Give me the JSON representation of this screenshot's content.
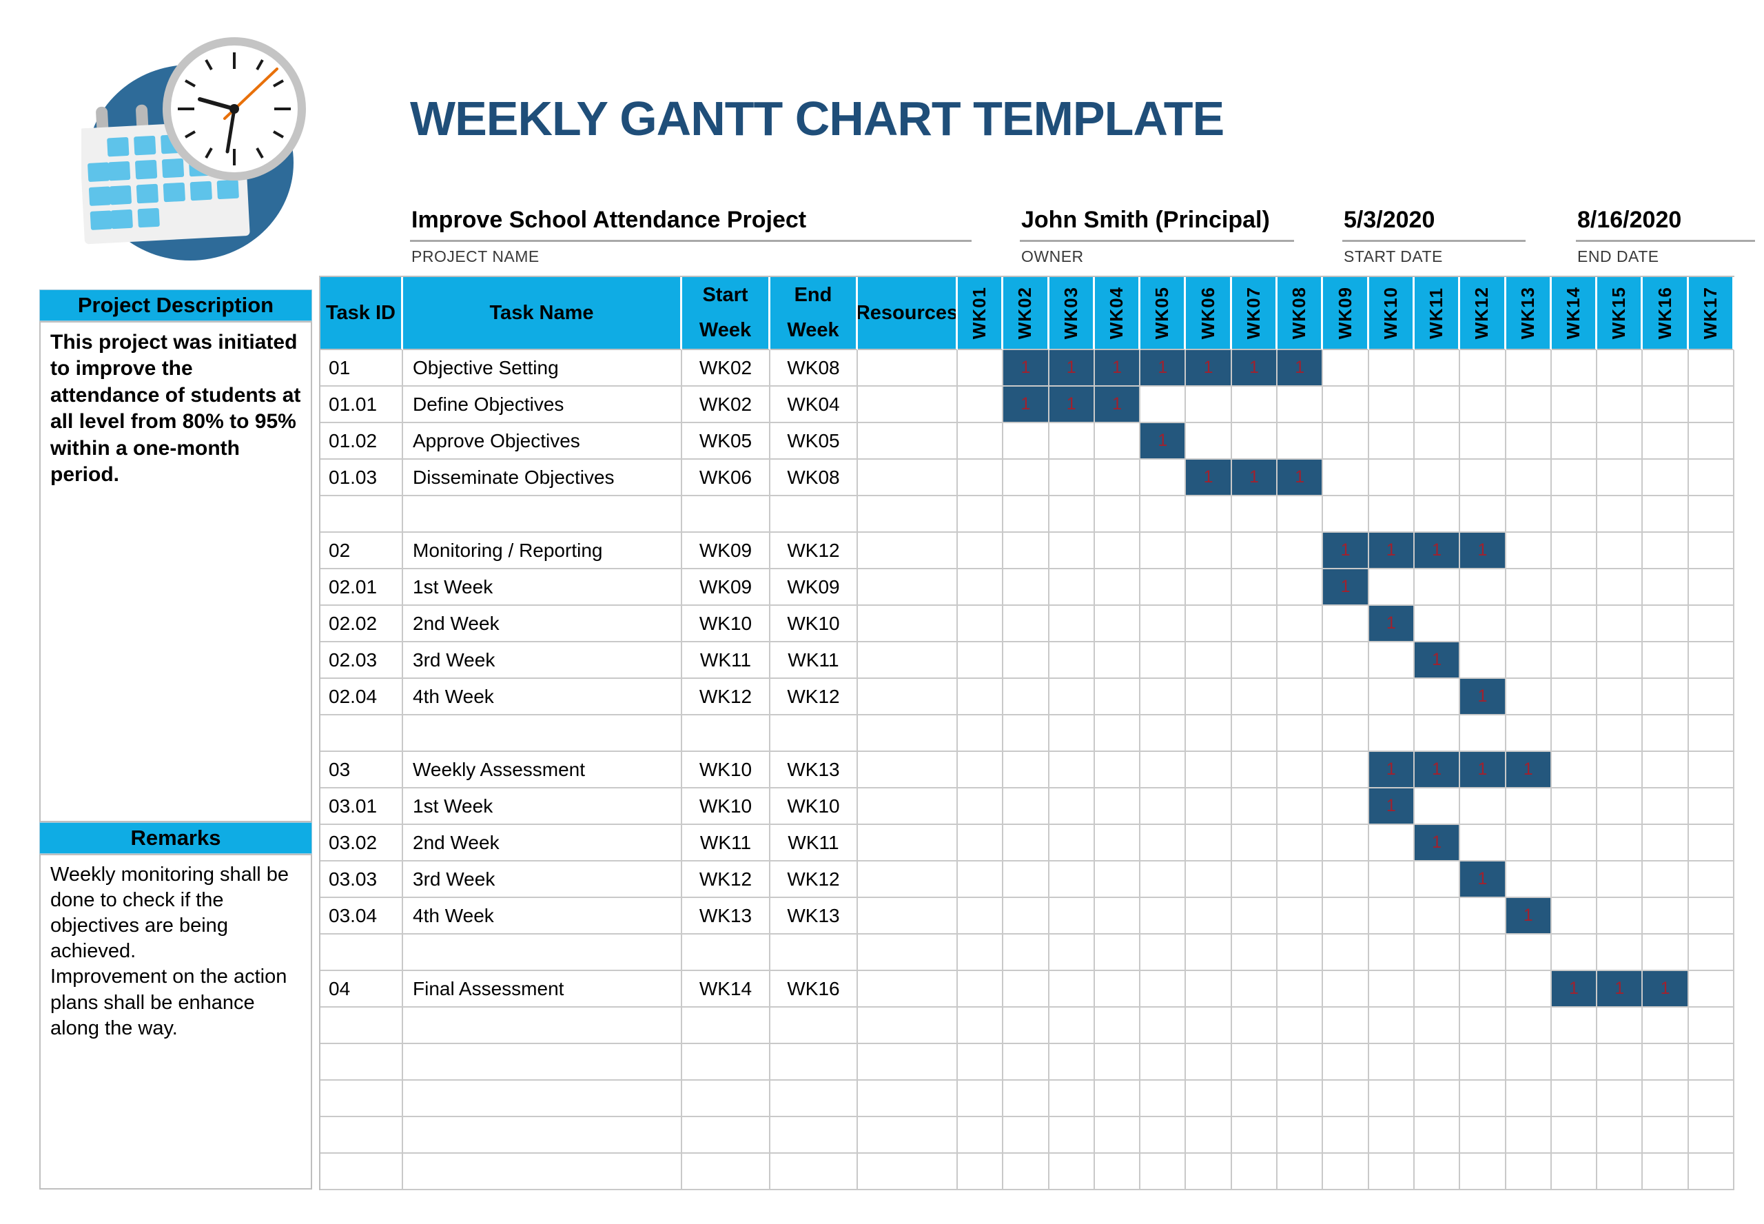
{
  "title": "WEEKLY GANTT CHART TEMPLATE",
  "logo": {
    "icon": "calendar-clock-icon"
  },
  "colors": {
    "accent_cyan": "#0FACE4",
    "title_blue": "#1F4E79",
    "bar_navy": "#24577D",
    "bar_value_red": "#A0212E",
    "grid_gray": "#C9C9C9",
    "underline_gray": "#A9A9A9",
    "logo_circle_blue": "#2E6B99",
    "logo_square_blue": "#5EC3EA",
    "clock_second_hand_orange": "#E8700A"
  },
  "project_info": {
    "project_name": {
      "value": "Improve School Attendance Project",
      "label": "PROJECT NAME"
    },
    "owner": {
      "value": "John Smith (Principal)",
      "label": "OWNER"
    },
    "start_date": {
      "value": "5/3/2020",
      "label": "START DATE"
    },
    "end_date": {
      "value": "8/16/2020",
      "label": "END DATE"
    }
  },
  "sidebar": {
    "description": {
      "header": "Project Description",
      "body": "This project was initiated to improve the attendance of students at all level from 80% to 95% within a one-month period."
    },
    "remarks": {
      "header": "Remarks",
      "body": "Weekly monitoring shall be done to check if the objectives are being achieved.\nImprovement on the action plans shall be enhance along the way."
    }
  },
  "table": {
    "column_headers": {
      "task_id": "Task ID",
      "task_name": "Task Name",
      "start_week_line1": "Start",
      "start_week_line2": "Week",
      "end_week_line1": "End",
      "end_week_line2": "Week",
      "resources": "Resources"
    },
    "week_columns": [
      "WK01",
      "WK02",
      "WK03",
      "WK04",
      "WK05",
      "WK06",
      "WK07",
      "WK08",
      "WK09",
      "WK10",
      "WK11",
      "WK12",
      "WK13",
      "WK14",
      "WK15",
      "WK16",
      "WK17"
    ],
    "bar_cell_value": "1",
    "rows": [
      {
        "task_id": "01",
        "task_name": "Objective Setting",
        "start": "WK02",
        "end": "WK08",
        "resources": "",
        "bars": [
          2,
          3,
          4,
          5,
          6,
          7,
          8
        ]
      },
      {
        "task_id": "01.01",
        "task_name": "Define Objectives",
        "start": "WK02",
        "end": "WK04",
        "resources": "",
        "bars": [
          2,
          3,
          4
        ]
      },
      {
        "task_id": "01.02",
        "task_name": "Approve Objectives",
        "start": "WK05",
        "end": "WK05",
        "resources": "",
        "bars": [
          5
        ]
      },
      {
        "task_id": "01.03",
        "task_name": "Disseminate Objectives",
        "start": "WK06",
        "end": "WK08",
        "resources": "",
        "bars": [
          6,
          7,
          8
        ]
      },
      {
        "task_id": "",
        "task_name": "",
        "start": "",
        "end": "",
        "resources": "",
        "bars": []
      },
      {
        "task_id": "02",
        "task_name": "Monitoring / Reporting",
        "start": "WK09",
        "end": "WK12",
        "resources": "",
        "bars": [
          9,
          10,
          11,
          12
        ]
      },
      {
        "task_id": "02.01",
        "task_name": "1st Week",
        "start": "WK09",
        "end": "WK09",
        "resources": "",
        "bars": [
          9
        ]
      },
      {
        "task_id": "02.02",
        "task_name": "2nd Week",
        "start": "WK10",
        "end": "WK10",
        "resources": "",
        "bars": [
          10
        ]
      },
      {
        "task_id": "02.03",
        "task_name": "3rd Week",
        "start": "WK11",
        "end": "WK11",
        "resources": "",
        "bars": [
          11
        ]
      },
      {
        "task_id": "02.04",
        "task_name": "4th Week",
        "start": "WK12",
        "end": "WK12",
        "resources": "",
        "bars": [
          12
        ]
      },
      {
        "task_id": "",
        "task_name": "",
        "start": "",
        "end": "",
        "resources": "",
        "bars": []
      },
      {
        "task_id": "03",
        "task_name": "Weekly Assessment",
        "start": "WK10",
        "end": "WK13",
        "resources": "",
        "bars": [
          10,
          11,
          12,
          13
        ]
      },
      {
        "task_id": "03.01",
        "task_name": "1st Week",
        "start": "WK10",
        "end": "WK10",
        "resources": "",
        "bars": [
          10
        ]
      },
      {
        "task_id": "03.02",
        "task_name": "2nd Week",
        "start": "WK11",
        "end": "WK11",
        "resources": "",
        "bars": [
          11
        ]
      },
      {
        "task_id": "03.03",
        "task_name": "3rd Week",
        "start": "WK12",
        "end": "WK12",
        "resources": "",
        "bars": [
          12
        ]
      },
      {
        "task_id": "03.04",
        "task_name": "4th Week",
        "start": "WK13",
        "end": "WK13",
        "resources": "",
        "bars": [
          13
        ]
      },
      {
        "task_id": "",
        "task_name": "",
        "start": "",
        "end": "",
        "resources": "",
        "bars": []
      },
      {
        "task_id": "04",
        "task_name": "Final Assessment",
        "start": "WK14",
        "end": "WK16",
        "resources": "",
        "bars": [
          14,
          15,
          16
        ]
      },
      {
        "task_id": "",
        "task_name": "",
        "start": "",
        "end": "",
        "resources": "",
        "bars": []
      },
      {
        "task_id": "",
        "task_name": "",
        "start": "",
        "end": "",
        "resources": "",
        "bars": []
      },
      {
        "task_id": "",
        "task_name": "",
        "start": "",
        "end": "",
        "resources": "",
        "bars": []
      },
      {
        "task_id": "",
        "task_name": "",
        "start": "",
        "end": "",
        "resources": "",
        "bars": []
      },
      {
        "task_id": "",
        "task_name": "",
        "start": "",
        "end": "",
        "resources": "",
        "bars": []
      }
    ]
  },
  "chart_data": {
    "type": "gantt",
    "title": "WEEKLY GANTT CHART TEMPLATE",
    "x_categories": [
      "WK01",
      "WK02",
      "WK03",
      "WK04",
      "WK05",
      "WK06",
      "WK07",
      "WK08",
      "WK09",
      "WK10",
      "WK11",
      "WK12",
      "WK13",
      "WK14",
      "WK15",
      "WK16",
      "WK17"
    ],
    "cell_value": 1,
    "tasks": [
      {
        "id": "01",
        "name": "Objective Setting",
        "start": "WK02",
        "end": "WK08"
      },
      {
        "id": "01.01",
        "name": "Define Objectives",
        "start": "WK02",
        "end": "WK04"
      },
      {
        "id": "01.02",
        "name": "Approve Objectives",
        "start": "WK05",
        "end": "WK05"
      },
      {
        "id": "01.03",
        "name": "Disseminate Objectives",
        "start": "WK06",
        "end": "WK08"
      },
      {
        "id": "02",
        "name": "Monitoring / Reporting",
        "start": "WK09",
        "end": "WK12"
      },
      {
        "id": "02.01",
        "name": "1st Week",
        "start": "WK09",
        "end": "WK09"
      },
      {
        "id": "02.02",
        "name": "2nd Week",
        "start": "WK10",
        "end": "WK10"
      },
      {
        "id": "02.03",
        "name": "3rd Week",
        "start": "WK11",
        "end": "WK11"
      },
      {
        "id": "02.04",
        "name": "4th Week",
        "start": "WK12",
        "end": "WK12"
      },
      {
        "id": "03",
        "name": "Weekly Assessment",
        "start": "WK10",
        "end": "WK13"
      },
      {
        "id": "03.01",
        "name": "1st Week",
        "start": "WK10",
        "end": "WK10"
      },
      {
        "id": "03.02",
        "name": "2nd Week",
        "start": "WK11",
        "end": "WK11"
      },
      {
        "id": "03.03",
        "name": "3rd Week",
        "start": "WK12",
        "end": "WK12"
      },
      {
        "id": "03.04",
        "name": "4th Week",
        "start": "WK13",
        "end": "WK13"
      },
      {
        "id": "04",
        "name": "Final Assessment",
        "start": "WK14",
        "end": "WK16"
      }
    ]
  }
}
